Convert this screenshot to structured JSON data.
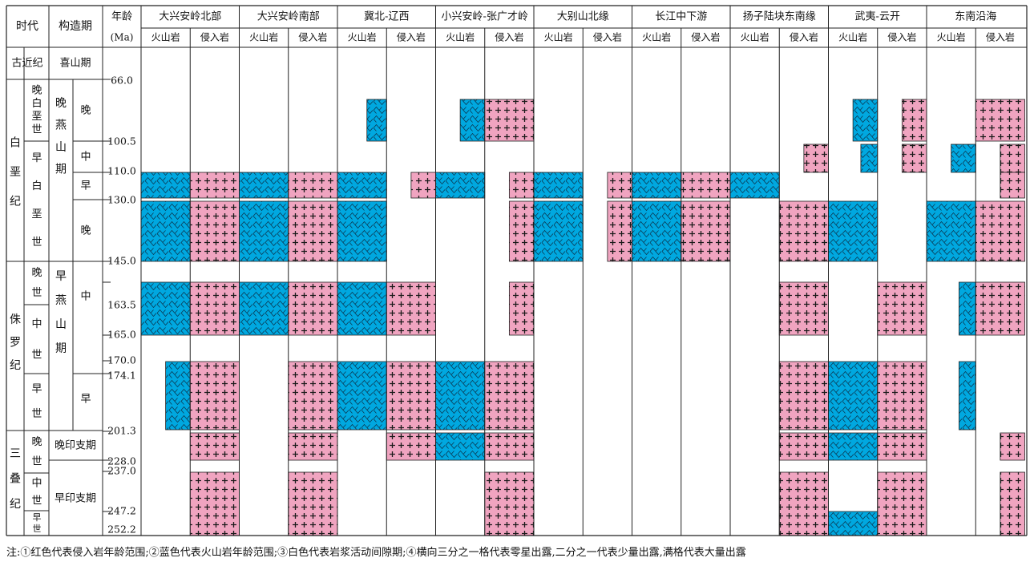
{
  "headers": {
    "era": "时代",
    "stage": "构造期",
    "age_line1": "年龄",
    "age_line2": "(Ma)",
    "volcanic": "火山岩",
    "intrusive": "侵入岩"
  },
  "regions": [
    "大兴安岭北部",
    "大兴安岭南部",
    "冀北-辽西",
    "小兴安岭-张广才岭",
    "大别山北缘",
    "长江中下游",
    "扬子陆块东南缘",
    "武夷-云开",
    "东南沿海"
  ],
  "periods": [
    "古近纪",
    "白垩纪",
    "侏罗纪",
    "三叠纪"
  ],
  "epochs": [
    "晚白垩世",
    "早白垩世",
    "晚世",
    "中世",
    "早世",
    "晚世",
    "中世",
    "早世"
  ],
  "tectonic_periods": [
    "喜山期",
    "晚燕山期",
    "早燕山期",
    "晚印支期",
    "早印支期"
  ],
  "subphases": [
    "晚",
    "中",
    "早",
    "晚",
    "中",
    "早"
  ],
  "ages": [
    "66.0",
    "100.5",
    "110.0",
    "130.0",
    "145.0",
    "163.5",
    "165.0",
    "170.0",
    "174.1",
    "201.3",
    "228.0",
    "237.0",
    "247.2",
    "252.2"
  ],
  "colors": {
    "volcanic": "#00a8e0",
    "intrusive": "#f0a4c0",
    "line": "#222222"
  },
  "icons": {
    "volcanic": "v-pattern-icon",
    "intrusive": "plus-pattern-icon"
  },
  "note": "注:①红色代表侵入岩年龄范围;②蓝色代表火山岩年龄范围;③白色代表岩浆活动间隙期;④横向三分之一格代表零星出露,二分之一代表少量出露,满格代表大量出露"
}
